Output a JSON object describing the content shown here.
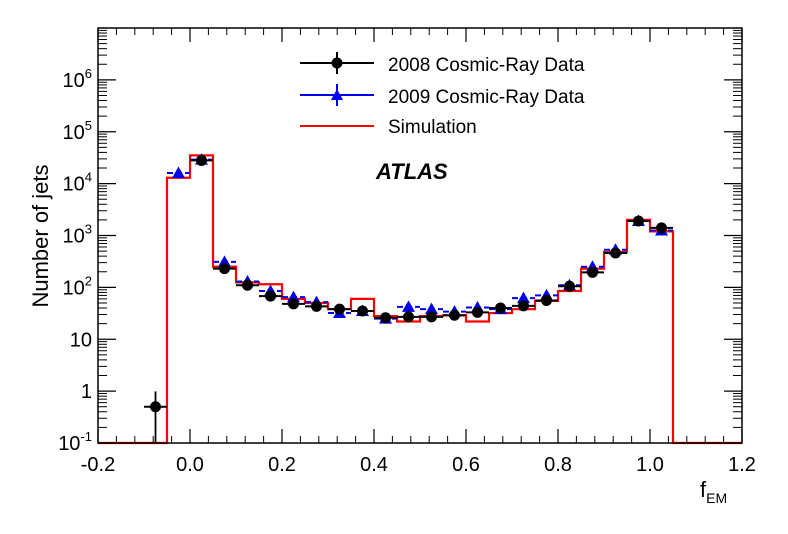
{
  "chart_data": {
    "type": "histogram",
    "xlabel_main": "f",
    "xlabel_sub": "EM",
    "ylabel": "Number of jets",
    "annotation": "ATLAS",
    "xlim": [
      -0.2,
      1.2
    ],
    "ylim_log10": [
      -1,
      7
    ],
    "x_ticks": [
      {
        "v": -0.2,
        "label": "-0.2"
      },
      {
        "v": 0.0,
        "label": "0.0"
      },
      {
        "v": 0.2,
        "label": "0.2"
      },
      {
        "v": 0.4,
        "label": "0.4"
      },
      {
        "v": 0.6,
        "label": "0.6"
      },
      {
        "v": 0.8,
        "label": "0.8"
      },
      {
        "v": 1.0,
        "label": "1.0"
      },
      {
        "v": 1.2,
        "label": "1.2"
      }
    ],
    "y_ticks": [
      {
        "exp": -1,
        "base": "10",
        "sup": "-1"
      },
      {
        "exp": 0,
        "base": "1",
        "sup": ""
      },
      {
        "exp": 1,
        "base": "10",
        "sup": ""
      },
      {
        "exp": 2,
        "base": "10",
        "sup": "2"
      },
      {
        "exp": 3,
        "base": "10",
        "sup": "3"
      },
      {
        "exp": 4,
        "base": "10",
        "sup": "4"
      },
      {
        "exp": 5,
        "base": "10",
        "sup": "5"
      },
      {
        "exp": 6,
        "base": "10",
        "sup": "6"
      }
    ],
    "legend": {
      "placement": "top-center",
      "entries": [
        {
          "label": "2008 Cosmic-Ray Data",
          "color": "#000000",
          "marker": "circle"
        },
        {
          "label": "2009 Cosmic-Ray Data",
          "color": "#0000ee",
          "marker": "triangle"
        },
        {
          "label": "Simulation",
          "color": "#ff0000",
          "marker": "line"
        }
      ]
    },
    "bin_width": 0.05,
    "series": [
      {
        "name": "2008 Cosmic-Ray Data",
        "color": "#000000",
        "marker": "circle",
        "x": [
          -0.075,
          0.025,
          0.075,
          0.125,
          0.175,
          0.225,
          0.275,
          0.325,
          0.375,
          0.425,
          0.475,
          0.525,
          0.575,
          0.625,
          0.675,
          0.725,
          0.775,
          0.825,
          0.875,
          0.925,
          0.975,
          1.025
        ],
        "y": [
          0.5,
          28000,
          230,
          110,
          68,
          48,
          43,
          38,
          35,
          26,
          27,
          27,
          29,
          33,
          40,
          44,
          56,
          105,
          195,
          460,
          1900,
          1400
        ],
        "err_lo": [
          0.49,
          170,
          15,
          10,
          8,
          7,
          6,
          6,
          6,
          5,
          5,
          5,
          5,
          6,
          6,
          7,
          7,
          10,
          14,
          21,
          44,
          37
        ]
      },
      {
        "name": "2009 Cosmic-Ray Data",
        "color": "#0000ee",
        "marker": "triangle",
        "x": [
          -0.025,
          0.025,
          0.075,
          0.125,
          0.175,
          0.225,
          0.275,
          0.325,
          0.375,
          0.425,
          0.475,
          0.525,
          0.575,
          0.625,
          0.675,
          0.725,
          0.775,
          0.825,
          0.875,
          0.925,
          0.975,
          1.025
        ],
        "y": [
          16000,
          29000,
          310,
          130,
          85,
          65,
          52,
          32,
          35,
          25,
          42,
          38,
          34,
          41,
          38,
          62,
          70,
          110,
          250,
          530,
          1900,
          1250
        ],
        "err_lo": [
          126,
          170,
          18,
          11,
          9,
          8,
          7,
          6,
          6,
          5,
          6,
          6,
          6,
          6,
          6,
          8,
          8,
          10,
          16,
          23,
          44,
          35
        ]
      },
      {
        "name": "Simulation",
        "color": "#ff0000",
        "type": "step",
        "edges": [
          -0.05,
          0.0,
          0.05,
          0.1,
          0.15,
          0.2,
          0.25,
          0.3,
          0.35,
          0.4,
          0.45,
          0.5,
          0.55,
          0.6,
          0.65,
          0.7,
          0.75,
          0.8,
          0.85,
          0.9,
          0.95,
          1.0,
          1.05
        ],
        "y": [
          13000,
          35000,
          250,
          125,
          115,
          60,
          50,
          38,
          60,
          28,
          22,
          28,
          29,
          22,
          32,
          38,
          55,
          85,
          230,
          480,
          2000,
          1200
        ]
      }
    ]
  }
}
